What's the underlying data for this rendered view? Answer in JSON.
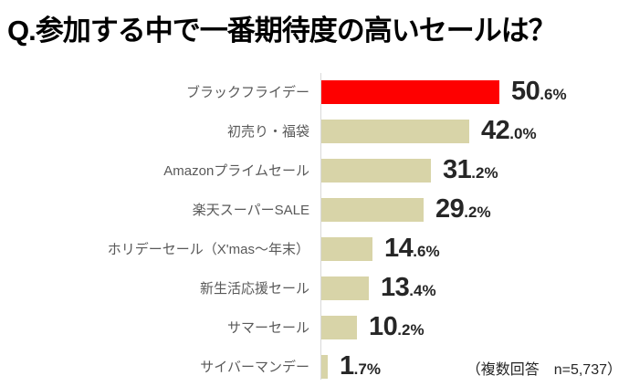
{
  "title": "Q.参加する中で一番期待度の高いセールは？",
  "footnote": "（複数回答　n=5,737）",
  "colors": {
    "highlight_bar": "#fe0000",
    "default_bar": "#d8d4a8",
    "axis_line": "#d9d9d9",
    "category_text": "#595959",
    "value_text": "#262626",
    "title_text": "#000000",
    "background": "#ffffff"
  },
  "chart_data": {
    "type": "bar",
    "orientation": "horizontal",
    "title": "Q.参加する中で一番期待度の高いセールは？",
    "categories": [
      "ブラックフライデー",
      "初売り・福袋",
      "Amazonプライムセール",
      "楽天スーパーSALE",
      "ホリデーセール（X'mas～年末）",
      "新生活応援セール",
      "サマーセール",
      "サイバーマンデー"
    ],
    "values": [
      50.6,
      42.0,
      31.2,
      29.2,
      14.6,
      13.4,
      10.2,
      1.7
    ],
    "value_labels": [
      "50.6%",
      "42.0%",
      "31.2%",
      "29.2%",
      "14.6%",
      "13.4%",
      "10.2%",
      "1.7%"
    ],
    "unit": "%",
    "highlighted_index": 0,
    "xlim": [
      0,
      55
    ],
    "grid": false,
    "legend": false,
    "annotation": "（複数回答　n=5,737）"
  }
}
